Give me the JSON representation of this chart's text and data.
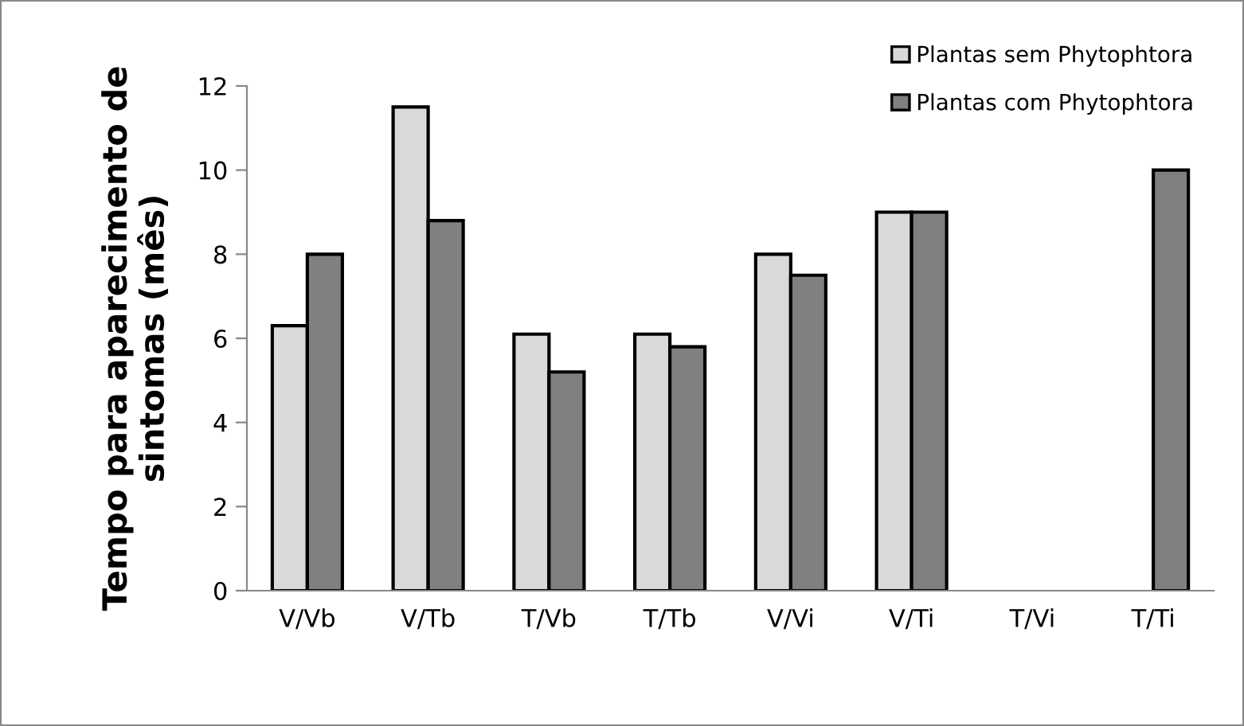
{
  "chart_data": {
    "type": "bar",
    "ylabel": "Tempo para aparecimento de\nsintomas (mês)",
    "categories": [
      "V/Vb",
      "V/Tb",
      "T/Vb",
      "T/Tb",
      "V/Vi",
      "V/Ti",
      "T/Vi",
      "T/Ti"
    ],
    "series": [
      {
        "name": "Plantas sem Phytophtora",
        "color": "#d9d9d9",
        "values": [
          6.3,
          11.5,
          6.1,
          6.1,
          8,
          9,
          null,
          null
        ]
      },
      {
        "name": "Plantas com Phytophtora",
        "color": "#808080",
        "values": [
          8,
          8.8,
          5.2,
          5.8,
          7.5,
          9,
          null,
          10
        ]
      }
    ],
    "ylim": [
      0,
      12
    ],
    "yticks": [
      0,
      2,
      4,
      6,
      8,
      10,
      12
    ],
    "grid": false,
    "legend": "top right"
  }
}
